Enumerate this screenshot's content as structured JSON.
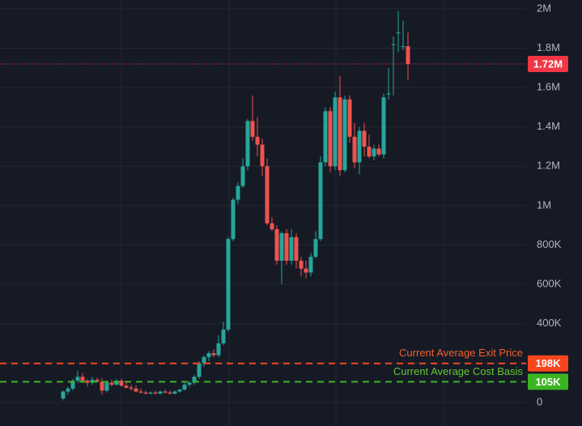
{
  "chart_data": {
    "type": "candlestick",
    "ylim": [
      -120000,
      2045000
    ],
    "yticks": [
      {
        "value": 0,
        "label": "0"
      },
      {
        "value": 200000,
        "label": "200K"
      },
      {
        "value": 400000,
        "label": "400K"
      },
      {
        "value": 600000,
        "label": "600K"
      },
      {
        "value": 800000,
        "label": "800K"
      },
      {
        "value": 1000000,
        "label": "1M"
      },
      {
        "value": 1200000,
        "label": "1.2M"
      },
      {
        "value": 1400000,
        "label": "1.4M"
      },
      {
        "value": 1600000,
        "label": "1.6M"
      },
      {
        "value": 1800000,
        "label": "1.8M"
      },
      {
        "value": 2000000,
        "label": "2M"
      }
    ],
    "grid": true,
    "up_color": "#26a69a",
    "down_color": "#ef5350",
    "open": [
      20000,
      55000,
      70000,
      110000,
      130000,
      110000,
      100000,
      115000,
      105000,
      60000,
      100000,
      90000,
      110000,
      85000,
      75000,
      70000,
      55000,
      50000,
      45000,
      50000,
      45000,
      55000,
      50000,
      45000,
      55000,
      65000,
      90000,
      100000,
      130000,
      200000,
      230000,
      250000,
      240000,
      300000,
      370000,
      830000,
      1030000,
      1100000,
      1200000,
      1430000,
      1350000,
      1310000,
      1200000,
      910000,
      880000,
      720000,
      860000,
      720000,
      840000,
      720000,
      680000,
      660000,
      740000,
      830000,
      1220000,
      1480000,
      1200000,
      1550000,
      1180000,
      1540000,
      1350000,
      1220000,
      1380000,
      1300000,
      1250000,
      1290000,
      1260000,
      1570000,
      1820000,
      1880000,
      1810000,
      1810000
    ],
    "high": [
      60000,
      80000,
      120000,
      160000,
      150000,
      120000,
      130000,
      125000,
      125000,
      110000,
      115000,
      120000,
      120000,
      100000,
      90000,
      85000,
      70000,
      60000,
      55000,
      60000,
      60000,
      65000,
      60000,
      60000,
      70000,
      100000,
      110000,
      140000,
      210000,
      240000,
      260000,
      270000,
      340000,
      410000,
      840000,
      1040000,
      1120000,
      1240000,
      1440000,
      1560000,
      1450000,
      1340000,
      1240000,
      940000,
      900000,
      870000,
      880000,
      880000,
      860000,
      740000,
      720000,
      760000,
      870000,
      1250000,
      1500000,
      1500000,
      1580000,
      1660000,
      1560000,
      1560000,
      1420000,
      1400000,
      1420000,
      1360000,
      1310000,
      1310000,
      1570000,
      1700000,
      1860000,
      1990000,
      1940000,
      1880000
    ],
    "low": [
      10000,
      40000,
      60000,
      100000,
      100000,
      80000,
      90000,
      100000,
      40000,
      50000,
      80000,
      85000,
      80000,
      70000,
      60000,
      50000,
      45000,
      40000,
      40000,
      40000,
      40000,
      45000,
      40000,
      40000,
      50000,
      60000,
      80000,
      90000,
      120000,
      180000,
      210000,
      230000,
      230000,
      290000,
      360000,
      820000,
      1010000,
      1090000,
      1180000,
      1330000,
      1250000,
      1150000,
      900000,
      870000,
      700000,
      600000,
      700000,
      700000,
      680000,
      640000,
      630000,
      640000,
      730000,
      820000,
      1200000,
      1170000,
      1180000,
      1150000,
      1170000,
      1320000,
      1190000,
      1160000,
      1250000,
      1240000,
      1230000,
      1250000,
      1240000,
      1540000,
      1560000,
      1780000,
      1790000,
      1640000
    ],
    "close": [
      55000,
      70000,
      110000,
      130000,
      110000,
      100000,
      115000,
      105000,
      60000,
      100000,
      90000,
      110000,
      85000,
      75000,
      70000,
      55000,
      50000,
      45000,
      50000,
      45000,
      55000,
      50000,
      45000,
      55000,
      65000,
      90000,
      100000,
      130000,
      200000,
      230000,
      250000,
      240000,
      300000,
      370000,
      830000,
      1030000,
      1100000,
      1200000,
      1430000,
      1350000,
      1310000,
      1200000,
      910000,
      880000,
      720000,
      860000,
      720000,
      840000,
      720000,
      680000,
      660000,
      740000,
      830000,
      1220000,
      1480000,
      1200000,
      1550000,
      1180000,
      1540000,
      1350000,
      1220000,
      1380000,
      1300000,
      1250000,
      1290000,
      1260000,
      1550000,
      1570000,
      1820000,
      1880000,
      1810000,
      1720000
    ],
    "price_line": {
      "value": 1720000,
      "label": "1.72M",
      "color": "#f23645"
    },
    "lines": [
      {
        "name": "Current Average Exit Price",
        "value": 198000,
        "label": "198K",
        "color": "#f5461e",
        "text_color": "#f0602e"
      },
      {
        "name": "Current Average Cost Basis",
        "value": 105000,
        "label": "105K",
        "color": "#3cb524",
        "text_color": "#62c832"
      }
    ]
  }
}
